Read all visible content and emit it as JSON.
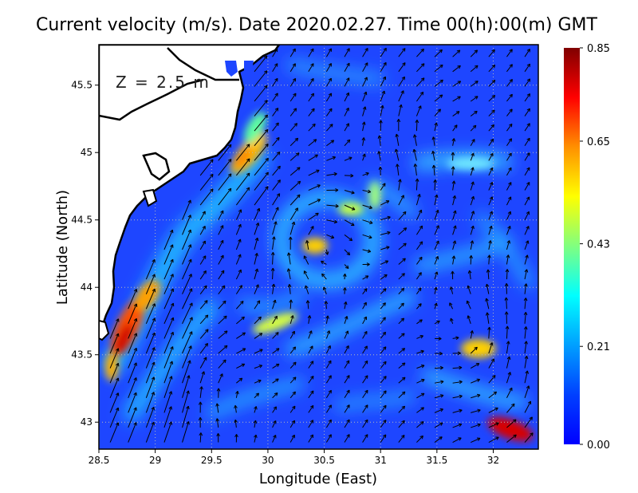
{
  "title": "Current velocity (m/s). Date 2020.02.27. Time 00(h):00(m) GMT",
  "depth_label": "Z = 2.5 m",
  "x_axis": {
    "title": "Longitude (East)",
    "ticks": [
      {
        "value": 28.5,
        "label": "28.5"
      },
      {
        "value": 29.0,
        "label": "29"
      },
      {
        "value": 29.5,
        "label": "29.5"
      },
      {
        "value": 30.0,
        "label": "30"
      },
      {
        "value": 30.5,
        "label": "30.5"
      },
      {
        "value": 31.0,
        "label": "31"
      },
      {
        "value": 31.5,
        "label": "31.5"
      },
      {
        "value": 32.0,
        "label": "32"
      }
    ]
  },
  "y_axis": {
    "title": "Latitude (North)",
    "ticks": [
      {
        "value": 43.0,
        "label": "43"
      },
      {
        "value": 43.5,
        "label": "43.5"
      },
      {
        "value": 44.0,
        "label": "44"
      },
      {
        "value": 44.5,
        "label": "44.5"
      },
      {
        "value": 45.0,
        "label": "45"
      },
      {
        "value": 45.5,
        "label": "45.5"
      }
    ]
  },
  "colorbar": {
    "unit": "m/s",
    "min": 0.0,
    "max": 0.85,
    "tick_values": [
      0.0,
      0.21,
      0.43,
      0.65,
      0.85
    ],
    "tick_labels": [
      "0.00",
      "0.21",
      "0.43",
      "0.65",
      "0.85"
    ]
  },
  "map_extent": {
    "lon_min": 28.5,
    "lon_max": 32.4,
    "lat_min": 42.8,
    "lat_max": 45.8
  },
  "colors": {
    "land": "#ffffff",
    "coast": "#000000",
    "grid": "#b8b8b8",
    "arrows": "#000000",
    "colormap": "jet"
  },
  "chart_data": {
    "type": "heatmap",
    "title": "Current velocity (m/s). Date 2020.02.27. Time 00(h):00(m) GMT",
    "xlabel": "Longitude (East)",
    "ylabel": "Latitude (North)",
    "xlim": [
      28.5,
      32.4
    ],
    "ylim": [
      42.8,
      45.8
    ],
    "value_range": [
      0.0,
      0.85
    ],
    "grid": true,
    "legend": "right colorbar",
    "features": [
      {
        "lon": 28.75,
        "lat": 43.7,
        "speed": 0.82
      },
      {
        "lon": 28.9,
        "lat": 43.95,
        "speed": 0.7
      },
      {
        "lon": 29.75,
        "lat": 44.95,
        "speed": 0.65
      },
      {
        "lon": 29.95,
        "lat": 45.15,
        "speed": 0.5
      },
      {
        "lon": 30.35,
        "lat": 44.32,
        "speed": 0.6
      },
      {
        "lon": 30.65,
        "lat": 44.6,
        "speed": 0.4
      },
      {
        "lon": 30.85,
        "lat": 44.65,
        "speed": 0.35
      },
      {
        "lon": 30.15,
        "lat": 43.7,
        "speed": 0.45
      },
      {
        "lon": 31.85,
        "lat": 43.55,
        "speed": 0.55
      },
      {
        "lon": 32.15,
        "lat": 42.95,
        "speed": 0.85
      },
      {
        "lon": 31.9,
        "lat": 45.0,
        "speed": 0.3
      },
      {
        "lon": 29.45,
        "lat": 44.55,
        "speed": 0.35
      },
      {
        "lon": 29.15,
        "lat": 43.2,
        "speed": 0.3
      }
    ]
  }
}
